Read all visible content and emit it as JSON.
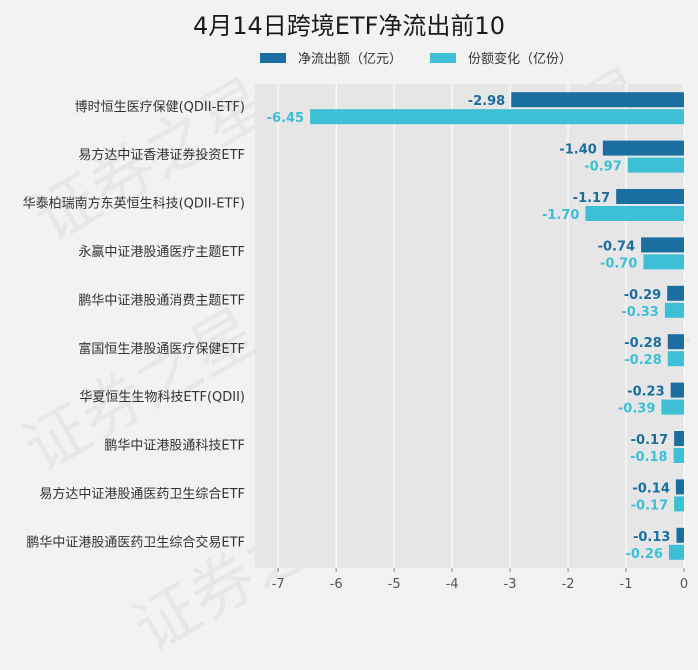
{
  "chart_data": {
    "type": "bar",
    "orientation": "horizontal",
    "title": "4月14日跨境ETF净流出前10",
    "categories": [
      "博时恒生医疗保健(QDII-ETF)",
      "易方达中证香港证券投资ETF",
      "华泰柏瑞南方东英恒生科技(QDII-ETF)",
      "永赢中证港股通医疗主题ETF",
      "鹏华中证港股通消费主题ETF",
      "富国恒生港股通医疗保健ETF",
      "华夏恒生生物科技ETF(QDII)",
      "鹏华中证港股通科技ETF",
      "易方达中证港股通医药卫生综合ETF",
      "鹏华中证港股通医药卫生综合交易ETF"
    ],
    "series": [
      {
        "name": "净流出额（亿元）",
        "color": "#1b6ea0",
        "values": [
          -2.98,
          -1.4,
          -1.17,
          -0.74,
          -0.29,
          -0.28,
          -0.23,
          -0.17,
          -0.14,
          -0.13
        ],
        "labels": [
          "-2.98",
          "-1.40",
          "-1.17",
          "-0.74",
          "-0.29",
          "-0.28",
          "-0.23",
          "-0.17",
          "-0.14",
          "-0.13"
        ]
      },
      {
        "name": "份额变化（亿份）",
        "color": "#3dbfd6",
        "values": [
          -6.45,
          -0.97,
          -1.7,
          -0.7,
          -0.33,
          -0.28,
          -0.39,
          -0.18,
          -0.17,
          -0.26
        ],
        "labels": [
          "-6.45",
          "-0.97",
          "-1.70",
          "-0.70",
          "-0.33",
          "-0.28",
          "-0.39",
          "-0.18",
          "-0.17",
          "-0.26"
        ]
      }
    ],
    "xlim": [
      -7.4,
      0
    ],
    "xticks": [
      -7,
      -6,
      -5,
      -4,
      -3,
      -2,
      -1,
      0
    ],
    "grid": true,
    "legend_position": "top",
    "watermark": "证券之星"
  }
}
